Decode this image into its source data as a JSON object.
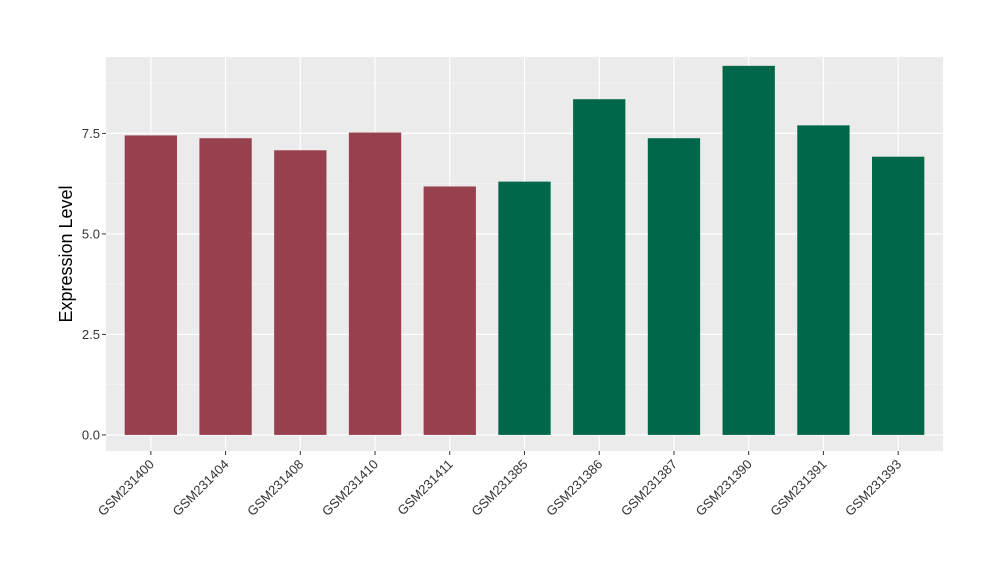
{
  "chart_data": {
    "type": "bar",
    "title": "",
    "xlabel": "",
    "ylabel": "Expression Level",
    "ylim": [
      -0.4,
      9.4
    ],
    "yticks": [
      0.0,
      2.5,
      5.0,
      7.5
    ],
    "ytick_labels": [
      "0.0",
      "2.5",
      "5.0",
      "7.5"
    ],
    "grid": true,
    "colors": {
      "panel": "#ebebeb",
      "grid_major": "#ffffff",
      "grid_minor": "#f5f5f5",
      "tick": "#333333"
    },
    "categories": [
      "GSM231400",
      "GSM231404",
      "GSM231408",
      "GSM231410",
      "GSM231411",
      "GSM231385",
      "GSM231386",
      "GSM231387",
      "GSM231390",
      "GSM231391",
      "GSM231393"
    ],
    "values": [
      7.45,
      7.38,
      7.08,
      7.52,
      6.18,
      6.3,
      8.35,
      7.38,
      9.18,
      7.7,
      6.92
    ],
    "bar_colors": [
      "#98414e",
      "#98414e",
      "#98414e",
      "#98414e",
      "#98414e",
      "#00674a",
      "#00674a",
      "#00674a",
      "#00674a",
      "#00674a",
      "#00674a"
    ]
  }
}
